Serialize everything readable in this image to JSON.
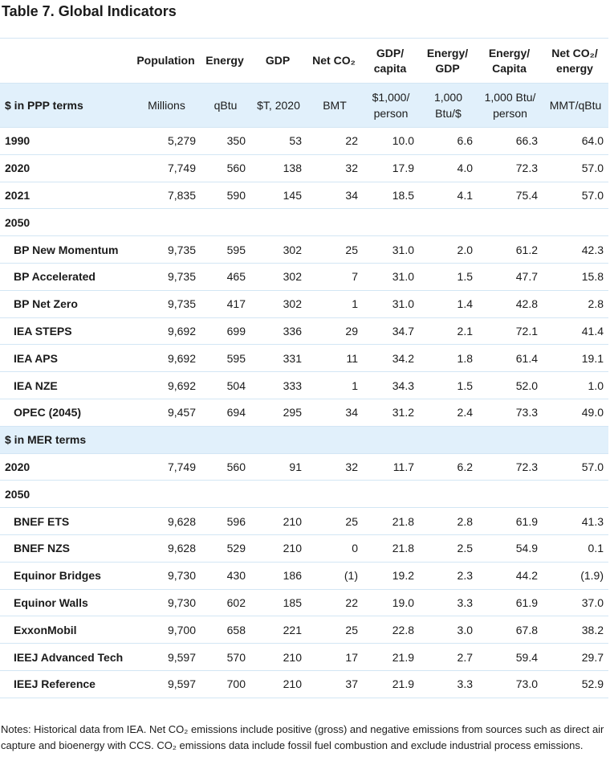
{
  "title": "Table 7.  Global Indicators",
  "table": {
    "header": [
      "Population",
      "Energy",
      "GDP",
      "Net CO₂",
      "GDP/ capita",
      "Energy/ GDP",
      "Energy/ Capita",
      "Net CO₂/ energy"
    ],
    "sections": [
      {
        "label": "$ in PPP terms",
        "units": [
          "Millions",
          "qBtu",
          "$T, 2020",
          "BMT",
          "$1,000/ person",
          "1,000 Btu/$",
          "1,000 Btu/ person",
          "MMT/qBtu"
        ],
        "rows": [
          {
            "label": "1990",
            "values": [
              "5,279",
              "350",
              "53",
              "22",
              "10.0",
              "6.6",
              "66.3",
              "64.0"
            ]
          },
          {
            "label": "2020",
            "values": [
              "7,749",
              "560",
              "138",
              "32",
              "17.9",
              "4.0",
              "72.3",
              "57.0"
            ]
          },
          {
            "label": "2021",
            "values": [
              "7,835",
              "590",
              "145",
              "34",
              "18.5",
              "4.1",
              "75.4",
              "57.0"
            ]
          },
          {
            "label": "2050",
            "rows": [
              {
                "label": "BP New Momentum",
                "values": [
                  "9,735",
                  "595",
                  "302",
                  "25",
                  "31.0",
                  "2.0",
                  "61.2",
                  "42.3"
                ]
              },
              {
                "label": "BP Accelerated",
                "values": [
                  "9,735",
                  "465",
                  "302",
                  "7",
                  "31.0",
                  "1.5",
                  "47.7",
                  "15.8"
                ]
              },
              {
                "label": "BP Net Zero",
                "values": [
                  "9,735",
                  "417",
                  "302",
                  "1",
                  "31.0",
                  "1.4",
                  "42.8",
                  "2.8"
                ]
              },
              {
                "label": "IEA STEPS",
                "values": [
                  "9,692",
                  "699",
                  "336",
                  "29",
                  "34.7",
                  "2.1",
                  "72.1",
                  "41.4"
                ]
              },
              {
                "label": "IEA APS",
                "values": [
                  "9,692",
                  "595",
                  "331",
                  "11",
                  "34.2",
                  "1.8",
                  "61.4",
                  "19.1"
                ]
              },
              {
                "label": "IEA NZE",
                "values": [
                  "9,692",
                  "504",
                  "333",
                  "1",
                  "34.3",
                  "1.5",
                  "52.0",
                  "1.0"
                ]
              },
              {
                "label": "OPEC (2045)",
                "values": [
                  "9,457",
                  "694",
                  "295",
                  "34",
                  "31.2",
                  "2.4",
                  "73.3",
                  "49.0"
                ]
              }
            ]
          }
        ]
      },
      {
        "label": "$ in MER terms",
        "rows": [
          {
            "label": "2020",
            "values": [
              "7,749",
              "560",
              "91",
              "32",
              "11.7",
              "6.2",
              "72.3",
              "57.0"
            ]
          },
          {
            "label": "2050",
            "rows": [
              {
                "label": "BNEF ETS",
                "values": [
                  "9,628",
                  "596",
                  "210",
                  "25",
                  "21.8",
                  "2.8",
                  "61.9",
                  "41.3"
                ]
              },
              {
                "label": "BNEF NZS",
                "values": [
                  "9,628",
                  "529",
                  "210",
                  "0",
                  "21.8",
                  "2.5",
                  "54.9",
                  "0.1"
                ]
              },
              {
                "label": "Equinor Bridges",
                "values": [
                  "9,730",
                  "430",
                  "186",
                  "(1)",
                  "19.2",
                  "2.3",
                  "44.2",
                  "(1.9)"
                ]
              },
              {
                "label": "Equinor Walls",
                "values": [
                  "9,730",
                  "602",
                  "185",
                  "22",
                  "19.0",
                  "3.3",
                  "61.9",
                  "37.0"
                ]
              },
              {
                "label": "ExxonMobil",
                "values": [
                  "9,700",
                  "658",
                  "221",
                  "25",
                  "22.8",
                  "3.0",
                  "67.8",
                  "38.2"
                ]
              },
              {
                "label": "IEEJ Advanced Tech",
                "values": [
                  "9,597",
                  "570",
                  "210",
                  "17",
                  "21.9",
                  "2.7",
                  "59.4",
                  "29.7"
                ]
              },
              {
                "label": "IEEJ Reference",
                "values": [
                  "9,597",
                  "700",
                  "210",
                  "37",
                  "21.9",
                  "3.3",
                  "73.0",
                  "52.9"
                ]
              }
            ]
          }
        ]
      }
    ]
  },
  "notes": "Notes: Historical data from IEA. Net CO₂ emissions include positive (gross) and negative emissions from sources such as direct air capture and bioenergy with CCS. CO₂ emissions data include fossil fuel combustion and exclude industrial process emissions."
}
